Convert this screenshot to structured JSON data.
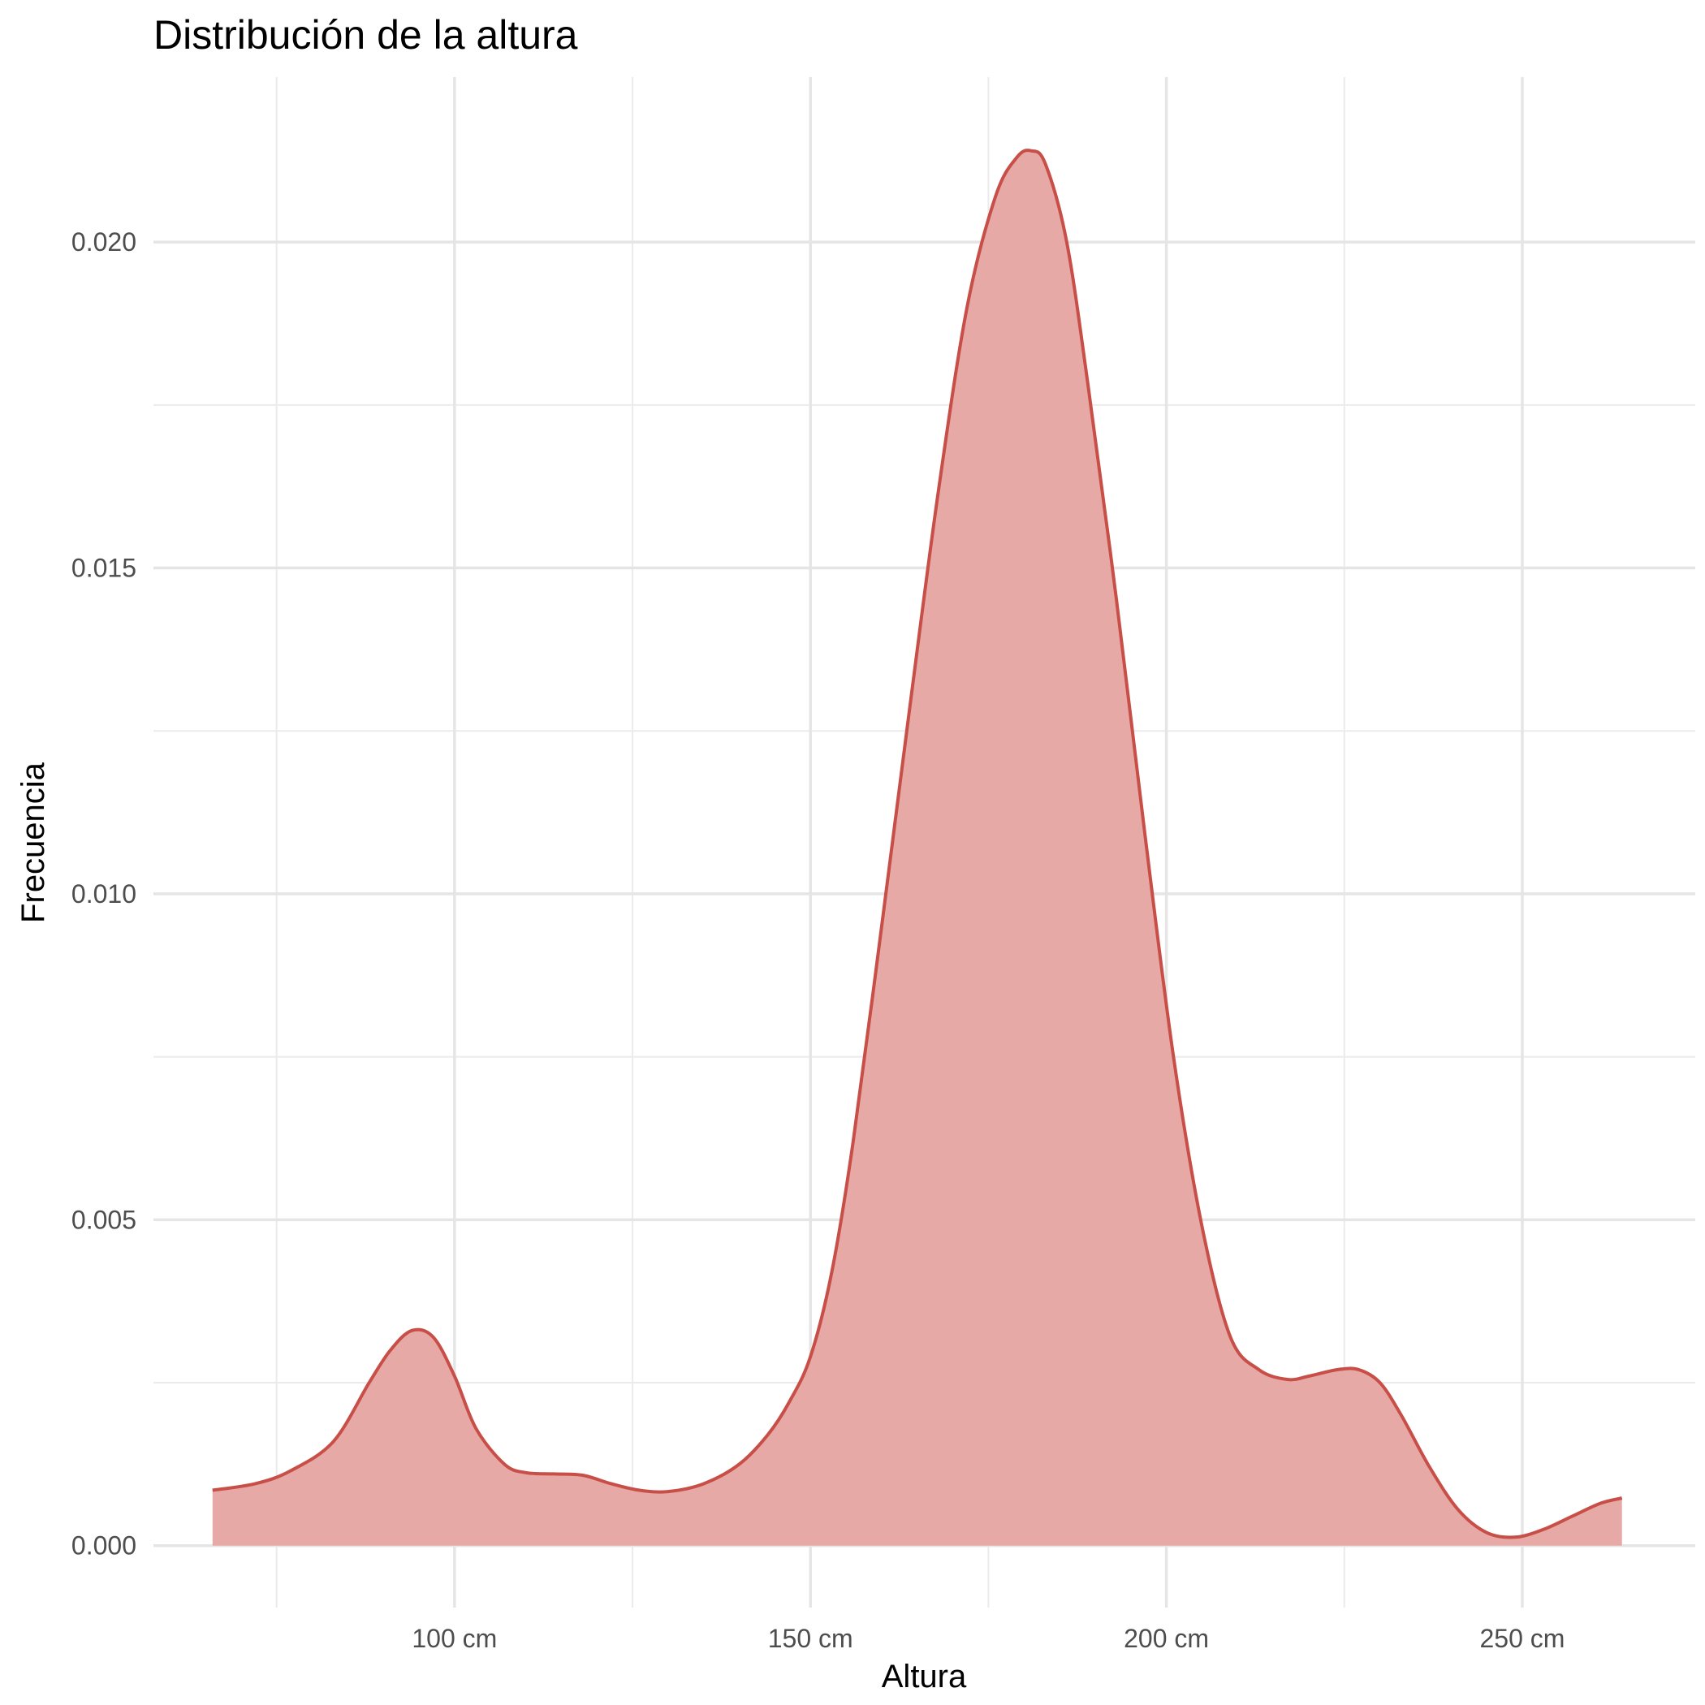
{
  "chart_data": {
    "type": "area",
    "title": "Distribución de la altura",
    "xlabel": "Altura",
    "ylabel": "Frecuencia",
    "xlim": [
      57.7,
      274.3
    ],
    "ylim": [
      -0.00095,
      0.02253
    ],
    "x_major_ticks": [
      100,
      150,
      200,
      250
    ],
    "x_tick_labels": [
      "100 cm",
      "150 cm",
      "200 cm",
      "250 cm"
    ],
    "x_minor_ticks": [
      75,
      125,
      175,
      225
    ],
    "y_major_ticks": [
      0.0,
      0.005,
      0.01,
      0.015,
      0.02
    ],
    "y_tick_labels": [
      "0.000",
      "0.005",
      "0.010",
      "0.015",
      "0.020"
    ],
    "y_minor_ticks": [
      0.0025,
      0.0075,
      0.0125,
      0.0175
    ],
    "grid": true,
    "fill_color": "#e6a6a3",
    "line_color": "#c84e48",
    "series": [
      {
        "x": [
          66,
          72,
          77,
          83,
          88,
          91,
          94,
          97,
          100,
          103,
          107,
          110,
          114,
          118,
          122,
          126,
          130,
          135,
          140,
          144,
          147,
          150,
          153,
          156,
          160,
          164,
          168,
          172,
          176,
          179,
          181,
          183,
          186,
          189,
          193,
          197,
          201,
          205,
          209,
          213,
          217,
          220,
          224,
          227,
          230,
          233,
          237,
          241,
          245,
          249,
          253,
          257,
          261,
          264
        ],
        "y": [
          0.00085,
          0.00095,
          0.00115,
          0.0016,
          0.0025,
          0.003,
          0.0033,
          0.0032,
          0.0026,
          0.0018,
          0.00125,
          0.00112,
          0.0011,
          0.00108,
          0.00095,
          0.00085,
          0.00083,
          0.00095,
          0.00125,
          0.0017,
          0.0022,
          0.0029,
          0.0042,
          0.0062,
          0.0095,
          0.0129,
          0.0162,
          0.019,
          0.0207,
          0.0213,
          0.0214,
          0.0212,
          0.02,
          0.0178,
          0.0145,
          0.0109,
          0.0075,
          0.0049,
          0.0032,
          0.0027,
          0.00255,
          0.0026,
          0.0027,
          0.0027,
          0.0025,
          0.002,
          0.0012,
          0.00055,
          0.0002,
          0.00013,
          0.00025,
          0.00045,
          0.00065,
          0.00073
        ]
      }
    ]
  }
}
